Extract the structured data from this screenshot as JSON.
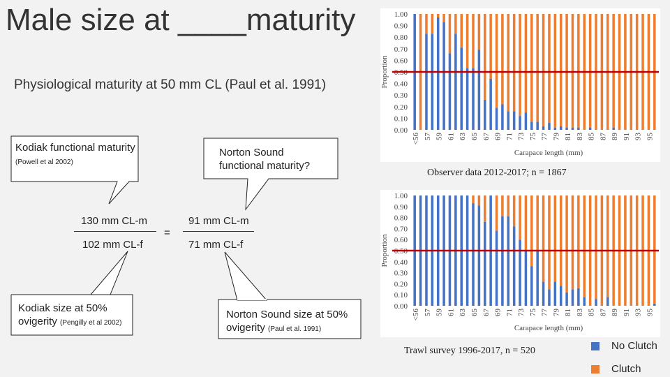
{
  "slide": {
    "title": "Male size at ____maturity",
    "subtitle": "Physiological maturity at 50 mm CL (Paul et al. 1991)",
    "callout_kodiak_functional_main": "Kodiak functional maturity",
    "callout_kodiak_functional_ref": "(Powell et al 2002)",
    "callout_norton_functional": "Norton Sound functional maturity?",
    "ratio_left_num": "130 mm CL-m",
    "ratio_left_den": "102 mm CL-f",
    "ratio_equals": "=",
    "ratio_right_num": "91 mm CL-m",
    "ratio_right_den": "71 mm CL-f",
    "callout_kodiak_50_main": "Kodiak size at 50% ovigerity",
    "callout_kodiak_50_ref": "(Pengilly et al 2002)",
    "callout_norton_50_main": "Norton Sound size at 50% ovigerity",
    "callout_norton_50_ref": "(Paul et al. 1991)",
    "legend": [
      {
        "label": "No Clutch",
        "color": "#4472c4"
      },
      {
        "label": "Clutch",
        "color": "#ed7d31"
      }
    ]
  },
  "chart_data": [
    {
      "type": "bar",
      "stacked": true,
      "caption": "Observer data 2012-2017; n = 1867",
      "xlabel": "Carapace length (mm)",
      "ylabel": "Proportion",
      "ylim": [
        0,
        1
      ],
      "yticks": [
        "0.00",
        "0.10",
        "0.20",
        "0.30",
        "0.40",
        "0.50",
        "0.60",
        "0.70",
        "0.80",
        "0.90",
        "1.00"
      ],
      "xtick_labels": [
        "<56",
        "57",
        "59",
        "61",
        "63",
        "65",
        "67",
        "69",
        "71",
        "73",
        "75",
        "77",
        "79",
        "81",
        "83",
        "85",
        "87",
        "89",
        "91",
        "93",
        "95"
      ],
      "categories": [
        "<56",
        "56",
        "57",
        "58",
        "59",
        "60",
        "61",
        "62",
        "63",
        "64",
        "65",
        "66",
        "67",
        "68",
        "69",
        "70",
        "71",
        "72",
        "73",
        "74",
        "75",
        "76",
        "77",
        "78",
        "79",
        "80",
        "81",
        "82",
        "83",
        "84",
        "85",
        "86",
        "87",
        "88",
        "89",
        "90",
        "91",
        "92",
        "93",
        "94",
        "95",
        "96"
      ],
      "series": [
        {
          "name": "No Clutch",
          "values": [
            1.0,
            0.0,
            0.83,
            0.83,
            0.97,
            0.93,
            0.66,
            0.83,
            0.71,
            0.53,
            0.53,
            0.69,
            0.26,
            0.44,
            0.19,
            0.22,
            0.16,
            0.16,
            0.12,
            0.15,
            0.07,
            0.07,
            0.03,
            0.06,
            0.02,
            0.03,
            0.02,
            0.02,
            0.02,
            0.0,
            0.02,
            0.0,
            0.0,
            0.0,
            0.02,
            0.0,
            0.0,
            0.0,
            0.0,
            0.0,
            0.0,
            0.0
          ]
        },
        {
          "name": "Clutch",
          "values": [
            0.0,
            1.0,
            0.17,
            0.17,
            0.03,
            0.07,
            0.34,
            0.17,
            0.29,
            0.47,
            0.47,
            0.31,
            0.74,
            0.56,
            0.81,
            0.78,
            0.84,
            0.84,
            0.88,
            0.85,
            0.93,
            0.93,
            0.97,
            0.94,
            0.98,
            0.97,
            0.98,
            0.98,
            0.98,
            1.0,
            0.98,
            1.0,
            1.0,
            1.0,
            0.98,
            1.0,
            1.0,
            1.0,
            1.0,
            1.0,
            1.0,
            1.0
          ]
        }
      ],
      "reference_line": {
        "y": 0.5,
        "color": "#c00000"
      }
    },
    {
      "type": "bar",
      "stacked": true,
      "caption": "Trawl survey 1996-2017, n = 520",
      "xlabel": "Carapace length (mm)",
      "ylabel": "Proportion",
      "ylim": [
        0,
        1
      ],
      "yticks": [
        "0.00",
        "0.10",
        "0.20",
        "0.30",
        "0.40",
        "0.50",
        "0.60",
        "0.70",
        "0.80",
        "0.90",
        "1.00"
      ],
      "xtick_labels": [
        "<56",
        "57",
        "59",
        "61",
        "63",
        "65",
        "67",
        "69",
        "71",
        "73",
        "75",
        "77",
        "79",
        "81",
        "83",
        "85",
        "87",
        "89",
        "91",
        "93",
        "95"
      ],
      "categories": [
        "<56",
        "56",
        "57",
        "58",
        "59",
        "60",
        "61",
        "62",
        "63",
        "64",
        "65",
        "66",
        "67",
        "68",
        "69",
        "70",
        "71",
        "72",
        "73",
        "74",
        "75",
        "76",
        "77",
        "78",
        "79",
        "80",
        "81",
        "82",
        "83",
        "84",
        "85",
        "86",
        "87",
        "88",
        "89",
        "90",
        "91",
        "92",
        "93",
        "94",
        "95",
        "96"
      ],
      "series": [
        {
          "name": "No Clutch",
          "values": [
            1.0,
            1.0,
            1.0,
            1.0,
            1.0,
            1.0,
            1.0,
            1.0,
            1.0,
            1.0,
            0.93,
            0.91,
            0.76,
            1.0,
            0.68,
            0.81,
            0.81,
            0.72,
            0.6,
            0.5,
            0.36,
            0.5,
            0.22,
            0.15,
            0.22,
            0.18,
            0.12,
            0.15,
            0.16,
            0.08,
            0.0,
            0.06,
            0.0,
            0.08,
            0.0,
            0.0,
            0.0,
            0.0,
            0.0,
            0.0,
            0.0,
            0.02
          ]
        },
        {
          "name": "Clutch",
          "values": [
            0.0,
            0.0,
            0.0,
            0.0,
            0.0,
            0.0,
            0.0,
            0.0,
            0.0,
            0.0,
            0.07,
            0.09,
            0.24,
            0.0,
            0.32,
            0.19,
            0.19,
            0.28,
            0.4,
            0.5,
            0.64,
            0.5,
            0.78,
            0.85,
            0.78,
            0.82,
            0.88,
            0.85,
            0.84,
            0.92,
            1.0,
            0.94,
            1.0,
            0.92,
            1.0,
            1.0,
            1.0,
            1.0,
            1.0,
            1.0,
            1.0,
            0.98
          ]
        }
      ],
      "reference_line": {
        "y": 0.5,
        "color": "#c00000"
      }
    }
  ]
}
